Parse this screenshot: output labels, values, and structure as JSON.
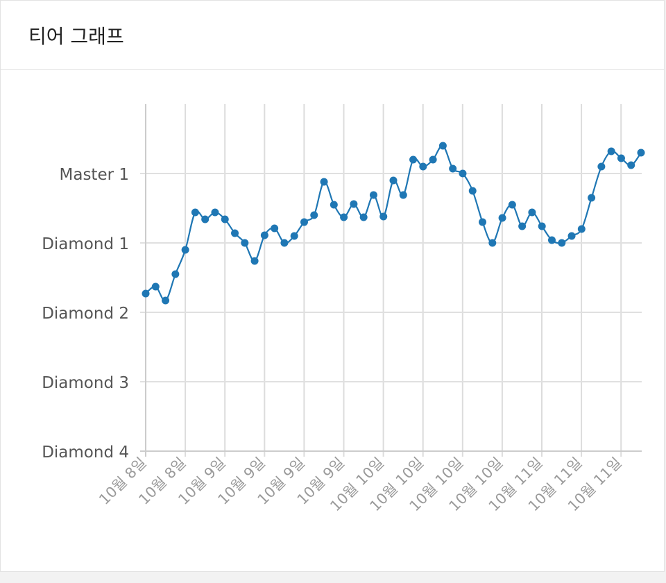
{
  "card": {
    "title": "티어 그래프"
  },
  "chart_data": {
    "type": "line",
    "title": "",
    "xlabel": "",
    "ylabel": "",
    "y_ticks": [
      "Master 1",
      "Diamond 1",
      "Diamond 2",
      "Diamond 3",
      "Diamond 4"
    ],
    "ylim": [
      0,
      5
    ],
    "grid": true,
    "x_tick_labels": [
      "10월 8일",
      "10월 8일",
      "10월 9일",
      "10월 9일",
      "10월 9일",
      "10월 9일",
      "10월 10일",
      "10월 10일",
      "10월 10일",
      "10월 10일",
      "10월 11일",
      "10월 11일",
      "10월 11일"
    ],
    "series": [
      {
        "color": "#1f77b4",
        "values": [
          2.27,
          2.37,
          2.17,
          2.55,
          2.9,
          3.44,
          3.34,
          3.44,
          3.34,
          3.14,
          3.0,
          2.74,
          3.11,
          3.21,
          3.0,
          3.1,
          3.3,
          3.4,
          3.88,
          3.55,
          3.37,
          3.56,
          3.37,
          3.69,
          3.38,
          3.9,
          3.69,
          4.2,
          4.1,
          4.2,
          4.4,
          4.07,
          4.0,
          3.75,
          3.3,
          3.0,
          3.36,
          3.55,
          3.24,
          3.44,
          3.24,
          3.04,
          3.0,
          3.1,
          3.2,
          3.65,
          4.1,
          4.32,
          4.22,
          4.12,
          4.3
        ]
      }
    ]
  }
}
